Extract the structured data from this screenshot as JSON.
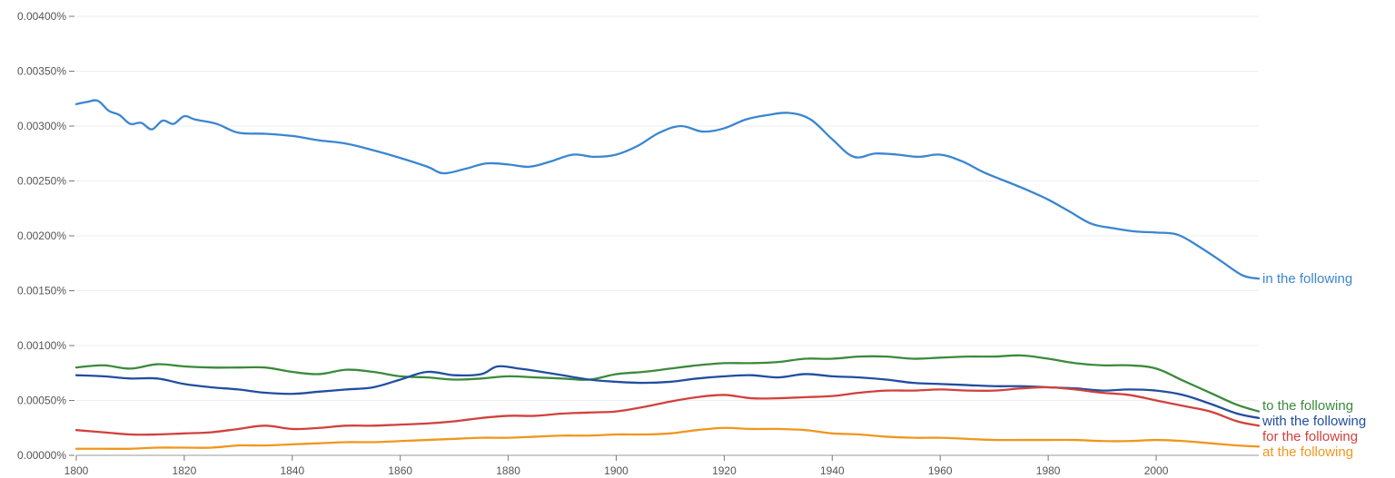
{
  "chart_data": {
    "type": "line",
    "title": "",
    "xlabel": "",
    "ylabel": "",
    "xlim": [
      1800,
      2019
    ],
    "ylim": [
      0,
      0.004
    ],
    "grid": true,
    "legend": "end-of-line labels",
    "yticks": [
      {
        "value": 0.004,
        "label": "0.00400%"
      },
      {
        "value": 0.0035,
        "label": "0.00350%"
      },
      {
        "value": 0.003,
        "label": "0.00300%"
      },
      {
        "value": 0.0025,
        "label": "0.00250%"
      },
      {
        "value": 0.002,
        "label": "0.00200%"
      },
      {
        "value": 0.0015,
        "label": "0.00150%"
      },
      {
        "value": 0.001,
        "label": "0.00100%"
      },
      {
        "value": 0.0005,
        "label": "0.00050%"
      },
      {
        "value": 0.0,
        "label": "0.00000%"
      }
    ],
    "xticks": [
      {
        "value": 1800,
        "label": "1800"
      },
      {
        "value": 1820,
        "label": "1820"
      },
      {
        "value": 1840,
        "label": "1840"
      },
      {
        "value": 1860,
        "label": "1860"
      },
      {
        "value": 1880,
        "label": "1880"
      },
      {
        "value": 1900,
        "label": "1900"
      },
      {
        "value": 1920,
        "label": "1920"
      },
      {
        "value": 1940,
        "label": "1940"
      },
      {
        "value": 1960,
        "label": "1960"
      },
      {
        "value": 1980,
        "label": "1980"
      },
      {
        "value": 2000,
        "label": "2000"
      }
    ],
    "series": [
      {
        "name": "in the following",
        "color": "#3a86d0",
        "x": [
          1800,
          1802,
          1804,
          1806,
          1808,
          1810,
          1812,
          1814,
          1816,
          1818,
          1820,
          1822,
          1826,
          1830,
          1835,
          1840,
          1845,
          1850,
          1855,
          1860,
          1865,
          1868,
          1872,
          1876,
          1880,
          1884,
          1888,
          1892,
          1896,
          1900,
          1904,
          1908,
          1912,
          1916,
          1920,
          1924,
          1928,
          1932,
          1936,
          1940,
          1944,
          1948,
          1952,
          1956,
          1960,
          1964,
          1968,
          1972,
          1976,
          1980,
          1984,
          1988,
          1992,
          1996,
          2000,
          2004,
          2008,
          2012,
          2016,
          2019
        ],
        "values": [
          0.0032,
          0.00322,
          0.00323,
          0.00314,
          0.0031,
          0.00302,
          0.00303,
          0.00297,
          0.00305,
          0.00302,
          0.00309,
          0.00306,
          0.00302,
          0.00294,
          0.00293,
          0.00291,
          0.00287,
          0.00284,
          0.00278,
          0.00271,
          0.00263,
          0.00257,
          0.00261,
          0.00266,
          0.00265,
          0.00263,
          0.00268,
          0.00274,
          0.00272,
          0.00274,
          0.00282,
          0.00294,
          0.003,
          0.00295,
          0.00298,
          0.00306,
          0.0031,
          0.00312,
          0.00306,
          0.00288,
          0.00272,
          0.00275,
          0.00274,
          0.00272,
          0.00274,
          0.00268,
          0.00258,
          0.0025,
          0.00242,
          0.00233,
          0.00222,
          0.00211,
          0.00207,
          0.00204,
          0.00203,
          0.00201,
          0.0019,
          0.00177,
          0.00164,
          0.00161
        ]
      },
      {
        "name": "to the following",
        "color": "#3b8a3b",
        "x": [
          1800,
          1805,
          1810,
          1815,
          1820,
          1825,
          1830,
          1835,
          1840,
          1845,
          1850,
          1855,
          1860,
          1865,
          1870,
          1875,
          1880,
          1885,
          1890,
          1895,
          1900,
          1905,
          1910,
          1915,
          1920,
          1925,
          1930,
          1935,
          1940,
          1945,
          1950,
          1955,
          1960,
          1965,
          1970,
          1975,
          1980,
          1985,
          1990,
          1995,
          2000,
          2005,
          2010,
          2015,
          2019
        ],
        "values": [
          0.0008,
          0.00082,
          0.00079,
          0.00083,
          0.00081,
          0.0008,
          0.0008,
          0.0008,
          0.00076,
          0.00074,
          0.00078,
          0.00076,
          0.00072,
          0.00071,
          0.00069,
          0.0007,
          0.00072,
          0.00071,
          0.0007,
          0.00069,
          0.00074,
          0.00076,
          0.00079,
          0.00082,
          0.00084,
          0.00084,
          0.00085,
          0.00088,
          0.00088,
          0.0009,
          0.0009,
          0.00088,
          0.00089,
          0.0009,
          0.0009,
          0.00091,
          0.00088,
          0.00084,
          0.00082,
          0.00082,
          0.00079,
          0.00068,
          0.00057,
          0.00046,
          0.0004
        ]
      },
      {
        "name": "with the following",
        "color": "#214ea0",
        "x": [
          1800,
          1805,
          1810,
          1815,
          1820,
          1825,
          1830,
          1835,
          1840,
          1845,
          1850,
          1855,
          1860,
          1865,
          1870,
          1875,
          1878,
          1882,
          1885,
          1890,
          1895,
          1900,
          1905,
          1910,
          1915,
          1920,
          1925,
          1930,
          1935,
          1940,
          1945,
          1950,
          1955,
          1960,
          1965,
          1970,
          1975,
          1980,
          1985,
          1990,
          1995,
          2000,
          2005,
          2010,
          2015,
          2019
        ],
        "values": [
          0.00073,
          0.00072,
          0.0007,
          0.0007,
          0.00065,
          0.00062,
          0.0006,
          0.00057,
          0.00056,
          0.00058,
          0.0006,
          0.00062,
          0.00069,
          0.00076,
          0.00073,
          0.00074,
          0.00081,
          0.00079,
          0.00077,
          0.00073,
          0.00069,
          0.00067,
          0.00066,
          0.00067,
          0.0007,
          0.00072,
          0.00073,
          0.00071,
          0.00074,
          0.00072,
          0.00071,
          0.00069,
          0.00066,
          0.00065,
          0.00064,
          0.00063,
          0.00063,
          0.00062,
          0.00061,
          0.00059,
          0.0006,
          0.00059,
          0.00055,
          0.00047,
          0.00038,
          0.00034
        ]
      },
      {
        "name": "for the following",
        "color": "#d1413d",
        "x": [
          1800,
          1805,
          1810,
          1815,
          1820,
          1825,
          1830,
          1835,
          1840,
          1845,
          1850,
          1855,
          1860,
          1865,
          1870,
          1875,
          1880,
          1885,
          1890,
          1895,
          1900,
          1905,
          1910,
          1915,
          1920,
          1925,
          1930,
          1935,
          1940,
          1945,
          1950,
          1955,
          1960,
          1965,
          1970,
          1975,
          1980,
          1985,
          1990,
          1995,
          2000,
          2005,
          2010,
          2015,
          2019
        ],
        "values": [
          0.00023,
          0.00021,
          0.00019,
          0.00019,
          0.0002,
          0.00021,
          0.00024,
          0.00027,
          0.00024,
          0.00025,
          0.00027,
          0.00027,
          0.00028,
          0.00029,
          0.00031,
          0.00034,
          0.00036,
          0.00036,
          0.00038,
          0.00039,
          0.0004,
          0.00044,
          0.00049,
          0.00053,
          0.00055,
          0.00052,
          0.00052,
          0.00053,
          0.00054,
          0.00057,
          0.00059,
          0.00059,
          0.0006,
          0.00059,
          0.00059,
          0.00061,
          0.00062,
          0.0006,
          0.00057,
          0.00055,
          0.0005,
          0.00045,
          0.0004,
          0.00031,
          0.00027
        ]
      },
      {
        "name": "at the following",
        "color": "#f0961f",
        "x": [
          1800,
          1805,
          1810,
          1815,
          1820,
          1825,
          1830,
          1835,
          1840,
          1845,
          1850,
          1855,
          1860,
          1865,
          1870,
          1875,
          1880,
          1885,
          1890,
          1895,
          1900,
          1905,
          1910,
          1915,
          1920,
          1925,
          1930,
          1935,
          1940,
          1945,
          1950,
          1955,
          1960,
          1965,
          1970,
          1975,
          1980,
          1985,
          1990,
          1995,
          2000,
          2005,
          2010,
          2015,
          2019
        ],
        "values": [
          6e-05,
          6e-05,
          6e-05,
          7e-05,
          7e-05,
          7e-05,
          9e-05,
          9e-05,
          0.0001,
          0.00011,
          0.00012,
          0.00012,
          0.00013,
          0.00014,
          0.00015,
          0.00016,
          0.00016,
          0.00017,
          0.00018,
          0.00018,
          0.00019,
          0.00019,
          0.0002,
          0.00023,
          0.00025,
          0.00024,
          0.00024,
          0.00023,
          0.0002,
          0.00019,
          0.00017,
          0.00016,
          0.00016,
          0.00015,
          0.00014,
          0.00014,
          0.00014,
          0.00014,
          0.00013,
          0.00013,
          0.00014,
          0.00013,
          0.00011,
          9e-05,
          8e-05
        ]
      }
    ]
  }
}
